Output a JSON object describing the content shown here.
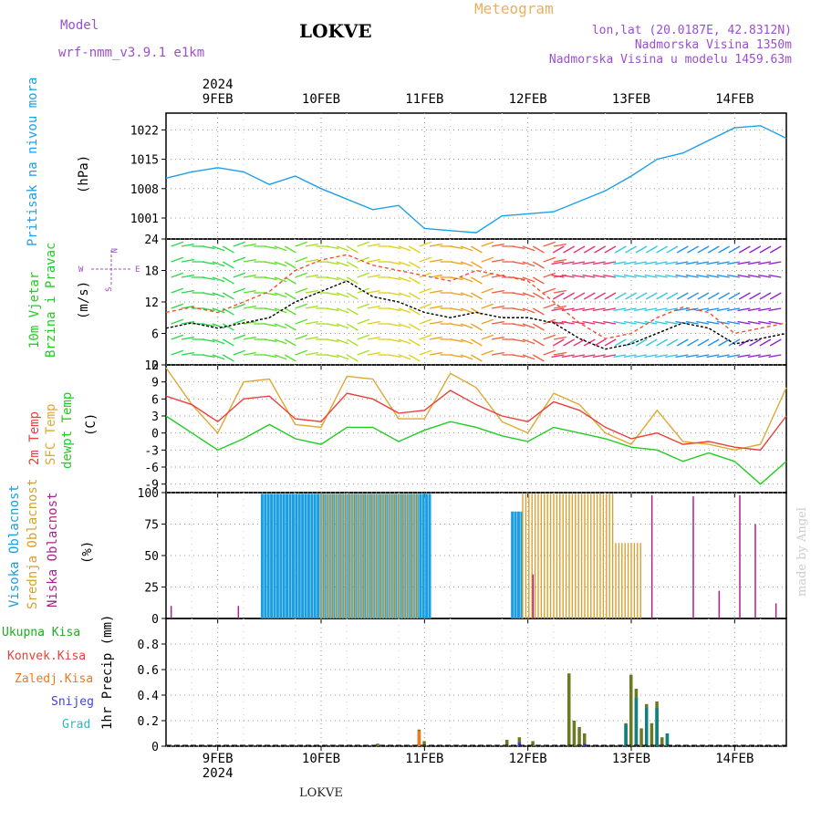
{
  "header": {
    "model_label": "Model",
    "model_name": "wrf-nmm_v3.9.1  e1km",
    "station": "LOKVE",
    "product": "Meteogram",
    "coords": "lon,lat (20.0187E, 42.8312N)",
    "elevation": "Nadmorska Visina 1350m",
    "model_elevation": "Nadmorska Visina u modelu 1459.63m",
    "footer_station": "LOKVE",
    "credit": "made by Angel"
  },
  "colors": {
    "pressure": "#1da0e8",
    "temp2m": "#e8423a",
    "sfc": "#e0a830",
    "dewpt": "#22cc22",
    "high": "#1a9ee0",
    "mid": "#d8a030",
    "low": "#b0208a",
    "model": "#9b4fcf",
    "meteogram": "#e8b060"
  },
  "axis": {
    "year_top": "2024",
    "year_bottom": "2024",
    "dates": [
      "9FEB",
      "10FEB",
      "11FEB",
      "12FEB",
      "13FEB",
      "14FEB"
    ],
    "day_positions": [
      0.5,
      1.5,
      2.5,
      3.5,
      4.5,
      5.5
    ],
    "range_days": [
      0,
      6.0
    ]
  },
  "labels": {
    "p1": "Pritisak na nivou mora",
    "p1u": "(hPa)",
    "p2a": "10m Vjetar",
    "p2b": "Brzina i Pravac",
    "p2u": "(m/s)",
    "p3a": "2m Temp",
    "p3b": "SFC Temp",
    "p3c": "dewpt Temp",
    "p3u": "(C)",
    "p4a": "Visoka Oblacnost",
    "p4b": "Srednja Oblacnost",
    "p4c": "Niska Oblacnost",
    "p4u": "(%)",
    "p5": "1hr Precip (mm)",
    "leg_total": "Ukupna Kisa",
    "leg_conv": "Konvek.Kisa",
    "leg_frz": "Zaledj.Kisa",
    "leg_snow": "Snijeg",
    "leg_grad": "Grad",
    "compass": "N",
    "compass_e": "E",
    "compass_w": "W",
    "compass_s": "S"
  },
  "chart_data": [
    {
      "type": "line",
      "name": "pressure",
      "ylim": [
        996,
        1026
      ],
      "yticks": [
        1001,
        1008,
        1015,
        1022
      ],
      "x": [
        0.0,
        0.25,
        0.5,
        0.75,
        1.0,
        1.25,
        1.5,
        1.75,
        2.0,
        2.25,
        2.5,
        2.75,
        3.0,
        3.25,
        3.5,
        3.75,
        4.0,
        4.25,
        4.5,
        4.75,
        5.0,
        5.25,
        5.5,
        5.75,
        6.0
      ],
      "series": [
        {
          "values": [
            1010.5,
            1012.0,
            1013.0,
            1012.0,
            1009.0,
            1011.0,
            1008.0,
            1005.5,
            1003.0,
            1004.0,
            998.5,
            998.0,
            997.5,
            1001.5,
            1002.0,
            1002.5,
            1005.0,
            1007.5,
            1011.0,
            1015.0,
            1016.5,
            1019.5,
            1022.5,
            1023.0,
            1020.0
          ]
        }
      ]
    },
    {
      "type": "line",
      "name": "wind speed",
      "ylim": [
        0,
        24
      ],
      "yticks": [
        0,
        6,
        12,
        18,
        24
      ],
      "x": [
        0.0,
        0.25,
        0.5,
        0.75,
        1.0,
        1.25,
        1.5,
        1.75,
        2.0,
        2.25,
        2.5,
        2.75,
        3.0,
        3.25,
        3.5,
        3.75,
        4.0,
        4.25,
        4.5,
        4.75,
        5.0,
        5.25,
        5.5,
        5.75,
        6.0
      ],
      "series": [
        {
          "values": [
            7,
            8,
            7,
            8,
            9,
            12,
            14,
            16,
            13,
            12,
            10,
            9,
            10,
            9,
            9,
            8,
            5,
            3,
            4,
            6,
            8,
            7,
            4,
            5,
            6
          ]
        },
        {
          "values": [
            10,
            11,
            10,
            12,
            14,
            18,
            20,
            21,
            19,
            18,
            17,
            16,
            18,
            17,
            16,
            12,
            8,
            5,
            6,
            9,
            11,
            10,
            6,
            7,
            8
          ]
        }
      ]
    },
    {
      "type": "line",
      "name": "temperature",
      "ylim": [
        -10.5,
        12
      ],
      "yticks": [
        -9,
        -6,
        -3,
        0,
        3,
        6,
        9,
        12
      ],
      "x": [
        0.0,
        0.25,
        0.5,
        0.75,
        1.0,
        1.25,
        1.5,
        1.75,
        2.0,
        2.25,
        2.5,
        2.75,
        3.0,
        3.25,
        3.5,
        3.75,
        4.0,
        4.25,
        4.5,
        4.75,
        5.0,
        5.25,
        5.5,
        5.75,
        6.0
      ],
      "series": [
        {
          "name": "2m Temp",
          "values": [
            6.5,
            5,
            2,
            6,
            6.5,
            2.5,
            2,
            7,
            6,
            3.5,
            4,
            7.5,
            5,
            3,
            2,
            5.5,
            4,
            1,
            -1,
            0,
            -2,
            -1.5,
            -2.5,
            -3,
            3
          ]
        },
        {
          "name": "SFC Temp",
          "values": [
            11.5,
            5,
            0,
            9,
            9.5,
            1.5,
            1,
            10,
            9.5,
            2.5,
            2.5,
            10.5,
            8,
            2,
            0,
            7,
            5,
            0,
            -2,
            4,
            -1.5,
            -2,
            -3,
            -2,
            8
          ]
        },
        {
          "name": "dewpt Temp",
          "values": [
            3,
            0,
            -3,
            -1,
            1.5,
            -1,
            -2,
            1,
            1,
            -1.5,
            0.5,
            2,
            1,
            -0.5,
            -1.5,
            1,
            0,
            -1,
            -2.5,
            -3,
            -5,
            -3.5,
            -5,
            -9,
            -5
          ]
        }
      ]
    },
    {
      "type": "bar",
      "name": "cloudiness",
      "ylim": [
        0,
        100
      ],
      "yticks": [
        0,
        25,
        50,
        75,
        100
      ],
      "series": [
        {
          "name": "Visoka Oblacnost",
          "segments": [
            [
              0.93,
              2.55,
              99
            ],
            [
              3.35,
              3.45,
              85
            ]
          ]
        },
        {
          "name": "Srednja Oblacnost",
          "segments": [
            [
              1.5,
              2.45,
              99
            ],
            [
              3.45,
              4.35,
              99
            ],
            [
              4.35,
              4.6,
              60
            ]
          ]
        },
        {
          "name": "Niska Oblacnost",
          "spikes": [
            [
              0.05,
              10
            ],
            [
              0.7,
              10
            ],
            [
              3.55,
              35
            ],
            [
              4.7,
              98
            ],
            [
              5.1,
              97
            ],
            [
              5.35,
              22
            ],
            [
              5.55,
              98
            ],
            [
              5.7,
              75
            ],
            [
              5.9,
              12
            ]
          ]
        }
      ]
    },
    {
      "type": "bar",
      "name": "precipitation",
      "ylim": [
        0,
        1.0
      ],
      "yticks": [
        0,
        0.2,
        0.4,
        0.6,
        0.8
      ],
      "series": [
        {
          "name": "Ukupna Kisa",
          "bars": [
            [
              2.05,
              0.02
            ],
            [
              2.45,
              0.13
            ],
            [
              2.5,
              0.04
            ],
            [
              3.3,
              0.05
            ],
            [
              3.42,
              0.07
            ],
            [
              3.55,
              0.04
            ],
            [
              3.9,
              0.57
            ],
            [
              3.95,
              0.2
            ],
            [
              4.0,
              0.15
            ],
            [
              4.05,
              0.1
            ],
            [
              4.45,
              0.18
            ],
            [
              4.5,
              0.56
            ],
            [
              4.55,
              0.45
            ],
            [
              4.6,
              0.14
            ],
            [
              4.65,
              0.33
            ],
            [
              4.7,
              0.18
            ],
            [
              4.75,
              0.35
            ],
            [
              4.8,
              0.07
            ],
            [
              4.85,
              0.1
            ]
          ]
        },
        {
          "name": "Zaledj.Kisa",
          "bars": [
            [
              2.45,
              0.12
            ]
          ]
        },
        {
          "name": "Snijeg",
          "bars": [
            [
              3.42,
              0.03
            ],
            [
              4.05,
              0.02
            ]
          ]
        },
        {
          "name": "Grad",
          "bars": [
            [
              4.45,
              0.17
            ],
            [
              4.55,
              0.38
            ],
            [
              4.65,
              0.3
            ],
            [
              4.75,
              0.3
            ],
            [
              4.85,
              0.1
            ]
          ]
        }
      ]
    }
  ]
}
